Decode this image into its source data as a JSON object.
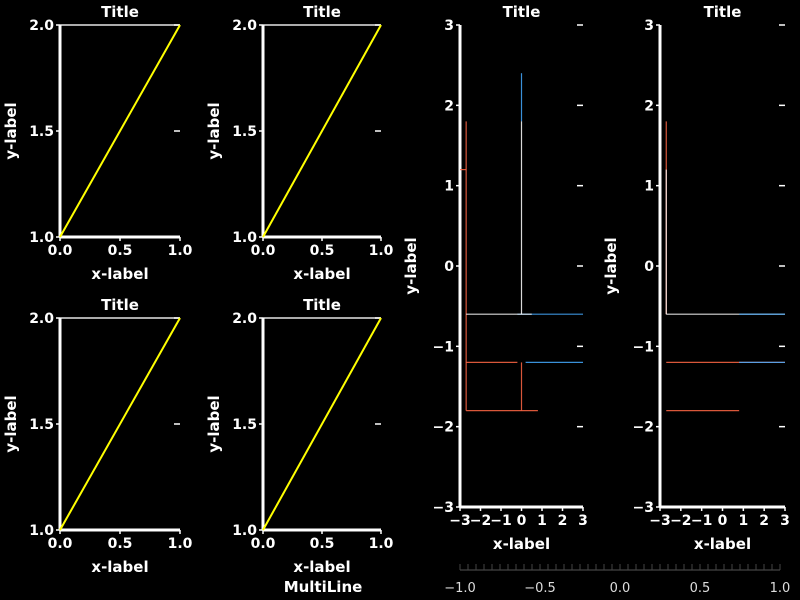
{
  "colors": {
    "background": "#000000",
    "axis": "#ffffff",
    "line": "#ffff00",
    "red": "#ff6644",
    "blue": "#44aaff",
    "white": "#ffffff"
  },
  "chart_data": [
    {
      "type": "line",
      "title": "Title",
      "xlabel": "x-label",
      "ylabel": "y-label",
      "xlim": [
        0,
        1
      ],
      "ylim": [
        1,
        2
      ],
      "xticks": [
        "0.0",
        "0.5",
        "1.0"
      ],
      "yticks": [
        "1.0",
        "1.5",
        "2.0"
      ],
      "series": [
        {
          "x": [
            0,
            1
          ],
          "y": [
            1,
            2
          ]
        }
      ]
    },
    {
      "type": "line",
      "title": "Title",
      "xlabel": "x-label",
      "ylabel": "y-label",
      "xlim": [
        0,
        1
      ],
      "ylim": [
        1,
        2
      ],
      "xticks": [
        "0.0",
        "0.5",
        "1.0"
      ],
      "yticks": [
        "1.0",
        "1.5",
        "2.0"
      ],
      "series": [
        {
          "x": [
            0,
            1
          ],
          "y": [
            1,
            2
          ]
        }
      ]
    },
    {
      "type": "line",
      "title": "Title",
      "xlabel": "x-label",
      "ylabel": "y-label",
      "xlim": [
        0,
        1
      ],
      "ylim": [
        1,
        2
      ],
      "xticks": [
        "0.0",
        "0.5",
        "1.0"
      ],
      "yticks": [
        "1.0",
        "1.5",
        "2.0"
      ],
      "series": [
        {
          "x": [
            0,
            1
          ],
          "y": [
            1,
            2
          ]
        }
      ]
    },
    {
      "type": "line",
      "title": "Title",
      "xlabel": "x-label",
      "ylabel": "y-label",
      "xlim": [
        0,
        1
      ],
      "ylim": [
        1,
        2
      ],
      "xticks": [
        "0.0",
        "0.5",
        "1.0"
      ],
      "yticks": [
        "1.0",
        "1.5",
        "2.0"
      ],
      "series": [
        {
          "x": [
            0,
            1
          ],
          "y": [
            1,
            2
          ]
        }
      ]
    },
    {
      "type": "line",
      "title": "Title",
      "xlabel": "x-label",
      "ylabel": "y-label",
      "xlim": [
        -3,
        3
      ],
      "ylim": [
        -3,
        3
      ],
      "xticks": [
        "−3",
        "−2",
        "−1",
        "0",
        "1",
        "2",
        "3"
      ],
      "yticks": [
        "−3",
        "−2",
        "−1",
        "0",
        "1",
        "2",
        "3"
      ],
      "segments": [
        {
          "color": "#ff6644",
          "points": [
            [
              -2.7,
              1.8
            ],
            [
              -2.7,
              -1.8
            ]
          ]
        },
        {
          "color": "#ff6644",
          "points": [
            [
              -3.0,
              1.2
            ],
            [
              -2.7,
              1.2
            ]
          ]
        },
        {
          "color": "#ff6644",
          "points": [
            [
              -2.7,
              -1.2
            ],
            [
              -0.2,
              -1.2
            ]
          ]
        },
        {
          "color": "#ff6644",
          "points": [
            [
              -2.7,
              -1.8
            ],
            [
              0.8,
              -1.8
            ]
          ]
        },
        {
          "color": "#ff6644",
          "points": [
            [
              0.0,
              -1.2
            ],
            [
              0.0,
              -1.8
            ]
          ]
        },
        {
          "color": "#44aaff",
          "points": [
            [
              0.2,
              -1.2
            ],
            [
              3.0,
              -1.2
            ]
          ]
        },
        {
          "color": "#44aaff",
          "points": [
            [
              -0.2,
              -0.6
            ],
            [
              3.0,
              -0.6
            ]
          ]
        },
        {
          "color": "#44aaff",
          "points": [
            [
              0.0,
              1.8
            ],
            [
              0.0,
              2.4
            ]
          ]
        },
        {
          "color": "#ffffff",
          "points": [
            [
              -2.7,
              -0.6
            ],
            [
              0.5,
              -0.6
            ]
          ]
        },
        {
          "color": "#ffffff",
          "points": [
            [
              0.0,
              1.8
            ],
            [
              0.0,
              -0.6
            ]
          ]
        }
      ]
    },
    {
      "type": "line",
      "title": "Title",
      "xlabel": "x-label",
      "ylabel": "y-label",
      "xlim": [
        -3,
        3
      ],
      "ylim": [
        -3,
        3
      ],
      "xticks": [
        "−3",
        "−2",
        "−1",
        "0",
        "1",
        "2",
        "3"
      ],
      "yticks": [
        "−3",
        "−2",
        "−1",
        "0",
        "1",
        "2",
        "3"
      ],
      "segments": [
        {
          "color": "#ff6644",
          "points": [
            [
              -2.7,
              1.8
            ],
            [
              -2.7,
              -0.6
            ]
          ]
        },
        {
          "color": "#ff6644",
          "points": [
            [
              -2.7,
              -1.2
            ],
            [
              3.0,
              -1.2
            ]
          ]
        },
        {
          "color": "#ff6644",
          "points": [
            [
              -2.7,
              -1.8
            ],
            [
              0.8,
              -1.8
            ]
          ]
        },
        {
          "color": "#ffffff",
          "points": [
            [
              -2.7,
              1.2
            ],
            [
              -2.7,
              -0.6
            ]
          ]
        },
        {
          "color": "#ffffff",
          "points": [
            [
              -2.7,
              -0.6
            ],
            [
              3.0,
              -0.6
            ]
          ]
        },
        {
          "color": "#44aaff",
          "points": [
            [
              0.8,
              -1.2
            ],
            [
              3.0,
              -1.2
            ]
          ]
        },
        {
          "color": "#44aaff",
          "points": [
            [
              0.8,
              -0.6
            ],
            [
              3.0,
              -0.6
            ]
          ]
        }
      ]
    }
  ],
  "figure": {
    "bottom_label": "MultiLine",
    "colorbar_ticks": [
      "−1.0",
      "−0.5",
      "0.0",
      "0.5",
      "1.0"
    ]
  }
}
